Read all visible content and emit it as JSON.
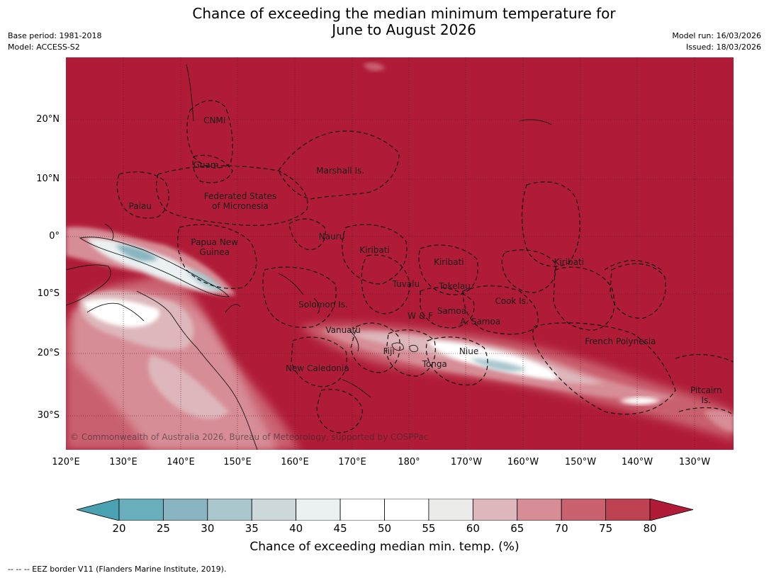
{
  "title_line1": "Chance of exceeding the median minimum temperature for",
  "title_line2": "June to August 2026",
  "meta_left": [
    "Base period: 1981-2018",
    "Model: ACCESS-S2"
  ],
  "meta_right": [
    "Model run: 16/03/2026",
    "Issued: 18/03/2026"
  ],
  "lat_labels": [
    "20°N",
    "10°N",
    "0°",
    "10°S",
    "20°S",
    "30°S"
  ],
  "lon_labels": [
    "120°E",
    "130°E",
    "140°E",
    "150°E",
    "160°E",
    "170°E",
    "180°",
    "170°W",
    "160°W",
    "150°W",
    "140°W",
    "130°W"
  ],
  "places": [
    {
      "name": "CNMI",
      "lon": 146,
      "lat": 20.2
    },
    {
      "name": "Guam",
      "lon": 144.5,
      "lat": 12.5
    },
    {
      "name": "Marshall Is.",
      "lon": 168,
      "lat": 11.5
    },
    {
      "name": "Federated States\nof Micronesia",
      "lon": 150.5,
      "lat": 7
    },
    {
      "name": "Palau",
      "lon": 133,
      "lat": 5.3
    },
    {
      "name": "Nauru",
      "lon": 166.5,
      "lat": 0
    },
    {
      "name": "Papua New\nGuinea",
      "lon": 146,
      "lat": -1
    },
    {
      "name": "Kiribati",
      "lon": 174,
      "lat": -2.3
    },
    {
      "name": "Kiribati",
      "lon": -173,
      "lat": -4.5
    },
    {
      "name": "Kiribati",
      "lon": -152,
      "lat": -4.5
    },
    {
      "name": "Tuvalu",
      "lon": 179.5,
      "lat": -8.3
    },
    {
      "name": "Tokelau",
      "lon": -172,
      "lat": -8.6
    },
    {
      "name": "Cook Is.",
      "lon": -162,
      "lat": -11.2
    },
    {
      "name": "Solomon Is.",
      "lon": 165,
      "lat": -11.8
    },
    {
      "name": "Samoa",
      "lon": -172.5,
      "lat": -13
    },
    {
      "name": "W & F",
      "lon": -178,
      "lat": -13.8
    },
    {
      "name": "A. Samoa",
      "lon": -167.5,
      "lat": -14.8
    },
    {
      "name": "Vanuatu",
      "lon": 168.5,
      "lat": -16.3
    },
    {
      "name": "French Polynesia",
      "lon": -143,
      "lat": -18.3
    },
    {
      "name": "Fiji",
      "lon": 176.5,
      "lat": -20
    },
    {
      "name": "Niue",
      "lon": -169.5,
      "lat": -20
    },
    {
      "name": "Tonga",
      "lon": -175.5,
      "lat": -22.2
    },
    {
      "name": "New Caledonia",
      "lon": 164,
      "lat": -23
    },
    {
      "name": "Pitcairn\nIs.",
      "lon": -128,
      "lat": -26.8
    }
  ],
  "copyright": "© Commonwealth of Australia 2026, Bureau of Meteorology, supported by COSPPac",
  "colorbar": {
    "ticks": [
      "20",
      "25",
      "30",
      "35",
      "40",
      "45",
      "50",
      "55",
      "60",
      "65",
      "70",
      "75",
      "80"
    ],
    "colors": [
      "#6aaebb",
      "#89b5c0",
      "#a9c7cd",
      "#ccd8da",
      "#ebf1f2",
      "#ffffff",
      "#ffffff",
      "#ebebe9",
      "#ddb7bb",
      "#d78d96",
      "#c9616f",
      "#bd4352"
    ],
    "under_color": "#4aa1b1",
    "over_color": "#b01c38",
    "label": "Chance of exceeding median min. temp. (%)"
  },
  "footer": "--  --  -- EEZ border V11 (Flanders Marine Institute, 2019)."
}
